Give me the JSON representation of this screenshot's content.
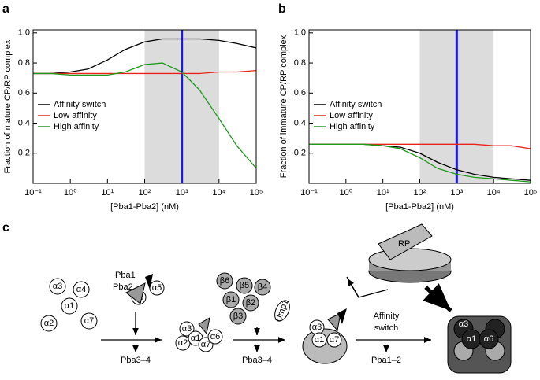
{
  "chart_data": [
    {
      "type": "line",
      "panel": "a",
      "xlabel": "[Pba1-Pba2] (nM)",
      "ylabel": "Fraction of mature CP/RP complex",
      "xscale": "log",
      "xlim": [
        0.1,
        100000
      ],
      "ylim": [
        0,
        1.02
      ],
      "xticks": [
        {
          "value": 0.1,
          "label": "10⁻¹"
        },
        {
          "value": 1,
          "label": "10⁰"
        },
        {
          "value": 10,
          "label": "10¹"
        },
        {
          "value": 100,
          "label": "10²"
        },
        {
          "value": 1000,
          "label": "10³"
        },
        {
          "value": 10000,
          "label": "10⁴"
        },
        {
          "value": 100000,
          "label": "10⁵"
        }
      ],
      "yticks": [
        0.2,
        0.4,
        0.6,
        0.8,
        {
          "value": 1,
          "label": "1.0"
        }
      ],
      "shade": [
        100,
        10000
      ],
      "shade_color": "#dcdcdc",
      "vline": 1000,
      "vline_color": "#1a1adb",
      "x": [
        0.1,
        0.3,
        1,
        3,
        10,
        30,
        100,
        300,
        1000,
        3000,
        10000,
        30000,
        100000
      ],
      "series": [
        {
          "name": "Affinity switch",
          "color": "#000000",
          "values": [
            0.73,
            0.73,
            0.74,
            0.76,
            0.82,
            0.89,
            0.94,
            0.96,
            0.96,
            0.96,
            0.95,
            0.93,
            0.9
          ]
        },
        {
          "name": "Low affinity",
          "color": "#e8251c",
          "values": [
            0.73,
            0.73,
            0.73,
            0.73,
            0.73,
            0.73,
            0.73,
            0.73,
            0.73,
            0.73,
            0.74,
            0.74,
            0.75
          ]
        },
        {
          "name": "High affinity",
          "color": "#1f9a1f",
          "values": [
            0.73,
            0.73,
            0.72,
            0.72,
            0.72,
            0.74,
            0.79,
            0.8,
            0.74,
            0.62,
            0.43,
            0.25,
            0.1
          ]
        }
      ]
    },
    {
      "type": "line",
      "panel": "b",
      "xlabel": "[Pba1-Pba2] (nM)",
      "ylabel": "Fraction of immature CP/RP complex",
      "xscale": "log",
      "xlim": [
        0.1,
        100000
      ],
      "ylim": [
        0,
        1.02
      ],
      "xticks": [
        {
          "value": 0.1,
          "label": "10⁻¹"
        },
        {
          "value": 1,
          "label": "10⁰"
        },
        {
          "value": 10,
          "label": "10¹"
        },
        {
          "value": 100,
          "label": "10²"
        },
        {
          "value": 1000,
          "label": "10³"
        },
        {
          "value": 10000,
          "label": "10⁴"
        },
        {
          "value": 100000,
          "label": "10⁵"
        }
      ],
      "yticks": [
        0.2,
        0.4,
        0.6,
        0.8,
        {
          "value": 1,
          "label": "1.0"
        }
      ],
      "shade": [
        100,
        10000
      ],
      "shade_color": "#dcdcdc",
      "vline": 1000,
      "vline_color": "#1a1adb",
      "x": [
        0.1,
        0.3,
        1,
        3,
        10,
        30,
        100,
        300,
        1000,
        3000,
        10000,
        30000,
        100000
      ],
      "series": [
        {
          "name": "Affinity switch",
          "color": "#000000",
          "values": [
            0.26,
            0.26,
            0.26,
            0.26,
            0.25,
            0.24,
            0.2,
            0.14,
            0.09,
            0.06,
            0.04,
            0.03,
            0.02
          ]
        },
        {
          "name": "Low affinity",
          "color": "#e8251c",
          "values": [
            0.26,
            0.26,
            0.26,
            0.26,
            0.26,
            0.26,
            0.26,
            0.26,
            0.26,
            0.26,
            0.25,
            0.25,
            0.23
          ]
        },
        {
          "name": "High affinity",
          "color": "#1f9a1f",
          "values": [
            0.26,
            0.26,
            0.26,
            0.26,
            0.25,
            0.23,
            0.17,
            0.1,
            0.06,
            0.04,
            0.03,
            0.02,
            0.01
          ]
        }
      ]
    }
  ],
  "diagram": {
    "panel": "c",
    "free_alpha": [
      "α3",
      "α4",
      "α1",
      "α2",
      "α7"
    ],
    "pba1": "Pba1",
    "pba2": "Pba2",
    "alpha5": "α5",
    "alpha6": "α6",
    "step1": "Pba3–4",
    "ring": [
      "α3",
      "α2",
      "α1",
      "α7",
      "α6"
    ],
    "beta": [
      "β6",
      "β5",
      "β4",
      "β1",
      "β2",
      "β3"
    ],
    "ump1": "Ump1",
    "step2": "Pba3–4",
    "half": [
      "α3",
      "α1",
      "α7"
    ],
    "switch": [
      "Affinity",
      "switch"
    ],
    "step3": "Pba1–2",
    "rp": "RP",
    "cp": [
      "α3",
      "α1",
      "α6"
    ]
  }
}
